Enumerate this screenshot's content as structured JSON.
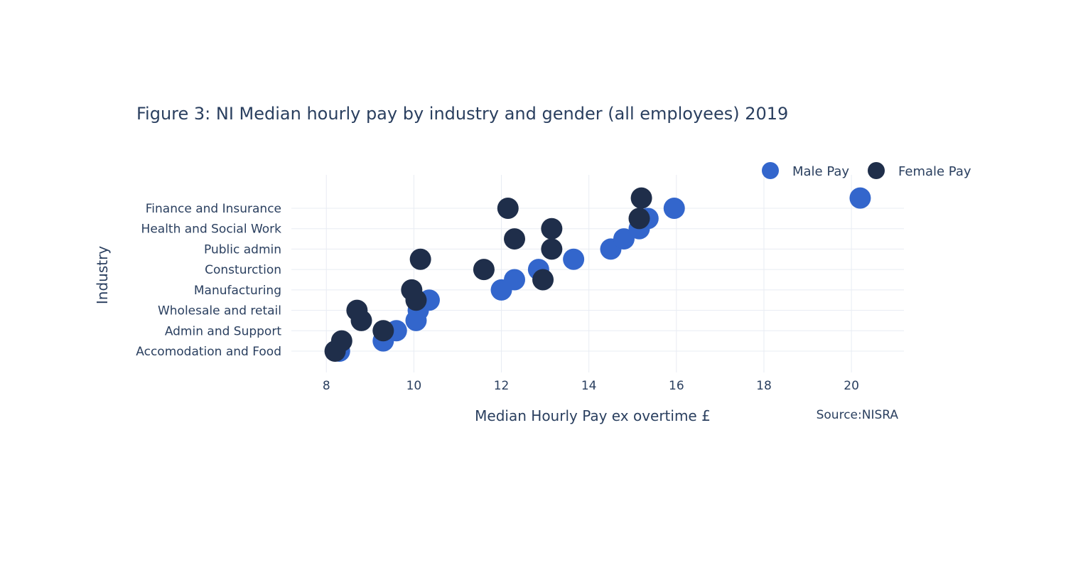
{
  "chart_data": {
    "type": "scatter",
    "title": "Figure 3: NI Median hourly pay by industry and gender (all employees) 2019",
    "xlabel": "Median Hourly Pay ex overtime £",
    "ylabel": "Industry",
    "annotation": "Source:NISRA",
    "xlim": [
      7.2,
      21.2
    ],
    "x_ticks": [
      8,
      10,
      12,
      14,
      16,
      18,
      20
    ],
    "x_tick_labels": [
      "8",
      "10",
      "12",
      "14",
      "16",
      "18",
      "20"
    ],
    "categories": [
      "Accomodation and Food",
      "Admin and Support",
      "Wholesale and retail",
      "Manufacturing",
      "Consturction",
      "Public admin",
      "Health and Social Work",
      "Finance and Insurance"
    ],
    "grid": true,
    "legend_position": "top-right",
    "colors": {
      "male": "#3366cc",
      "female": "#1f2e4a",
      "text": "#2a3f5f",
      "grid": "#e8ecf3"
    },
    "series": [
      {
        "name": "Male Pay",
        "color": "#3366cc",
        "points": [
          {
            "x": 8.3,
            "y": 0.0
          },
          {
            "x": 9.3,
            "y": 0.5
          },
          {
            "x": 9.6,
            "y": 1.0
          },
          {
            "x": 10.05,
            "y": 1.5
          },
          {
            "x": 10.1,
            "y": 2.0
          },
          {
            "x": 10.35,
            "y": 2.5
          },
          {
            "x": 12.0,
            "y": 3.0
          },
          {
            "x": 12.3,
            "y": 3.5
          },
          {
            "x": 12.85,
            "y": 4.0
          },
          {
            "x": 13.65,
            "y": 4.5
          },
          {
            "x": 14.5,
            "y": 5.0
          },
          {
            "x": 14.8,
            "y": 5.5
          },
          {
            "x": 15.15,
            "y": 6.0
          },
          {
            "x": 15.35,
            "y": 6.5
          },
          {
            "x": 15.95,
            "y": 7.0
          },
          {
            "x": 20.2,
            "y": 7.5
          }
        ]
      },
      {
        "name": "Female Pay",
        "color": "#1f2e4a",
        "points": [
          {
            "x": 8.2,
            "y": 0.0
          },
          {
            "x": 8.35,
            "y": 0.5
          },
          {
            "x": 9.3,
            "y": 1.0
          },
          {
            "x": 8.8,
            "y": 1.5
          },
          {
            "x": 8.7,
            "y": 2.0
          },
          {
            "x": 10.05,
            "y": 2.5
          },
          {
            "x": 9.95,
            "y": 3.0
          },
          {
            "x": 12.95,
            "y": 3.5
          },
          {
            "x": 11.6,
            "y": 4.0
          },
          {
            "x": 10.15,
            "y": 4.5
          },
          {
            "x": 13.15,
            "y": 5.0
          },
          {
            "x": 12.3,
            "y": 5.5
          },
          {
            "x": 13.15,
            "y": 6.0
          },
          {
            "x": 15.15,
            "y": 6.5
          },
          {
            "x": 12.15,
            "y": 7.0
          },
          {
            "x": 15.2,
            "y": 7.5
          }
        ]
      }
    ]
  }
}
